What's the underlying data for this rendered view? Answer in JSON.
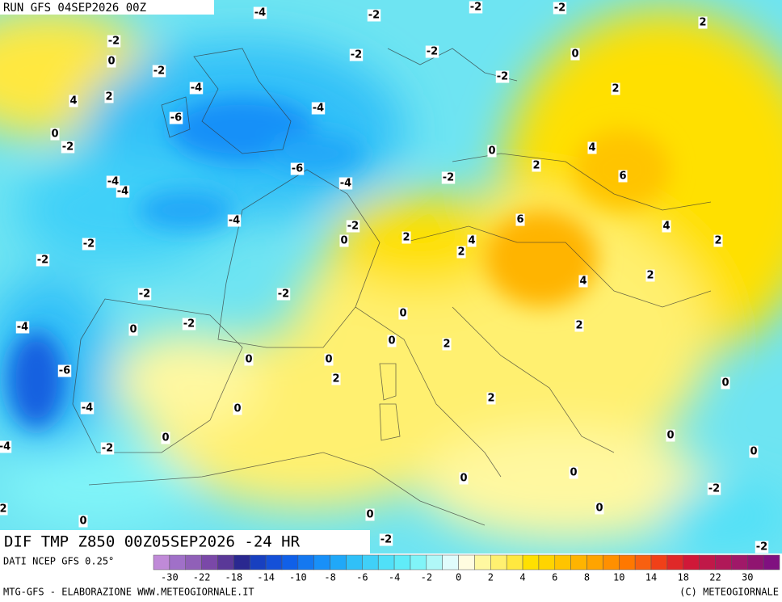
{
  "header": {
    "run": "RUN GFS 04SEP2026 00Z"
  },
  "map": {
    "title": "DIF TMP Z850 00Z05SEP2026 -24 HR",
    "contour_labels": [
      "-4",
      "-2",
      "-2",
      "-2",
      "2",
      "-2",
      "0",
      "-2",
      "-2",
      "0",
      "-2",
      "-2",
      "-4",
      "2",
      "4",
      "2",
      "-4",
      "-6",
      "0",
      "-2",
      "0",
      "4",
      "2",
      "-6",
      "6",
      "-4",
      "-4",
      "-2",
      "-4",
      "-4",
      "6",
      "4",
      "-2",
      "0",
      "2",
      "4",
      "2",
      "-2",
      "2",
      "-2",
      "2",
      "4",
      "-2",
      "-2",
      "0",
      "-4",
      "0",
      "-2",
      "2",
      "0",
      "2",
      "0",
      "0",
      "-6",
      "2",
      "0",
      "2",
      "-4",
      "0",
      "0",
      "0",
      "-2",
      "0",
      "-4",
      "0",
      "0",
      "-2",
      "0",
      "2",
      "0",
      "0",
      "-2",
      "-2"
    ]
  },
  "legend": {
    "source": "DATI NCEP GFS 0.25°",
    "colors": [
      "#c08ad8",
      "#a070c8",
      "#9060b8",
      "#7a48a8",
      "#5a3898",
      "#2a2890",
      "#1840c0",
      "#1450d8",
      "#1060e8",
      "#1478f0",
      "#1890f8",
      "#20a8f8",
      "#30c0f8",
      "#40d0f8",
      "#50e0f8",
      "#60ecf8",
      "#80f4f8",
      "#b0f8f8",
      "#e0fcfc",
      "#fffce0",
      "#fff8a0",
      "#fff070",
      "#ffe840",
      "#ffe000",
      "#ffd400",
      "#ffc400",
      "#ffb400",
      "#ffa400",
      "#ff9000",
      "#ff7800",
      "#f86010",
      "#f04018",
      "#e02828",
      "#d01838",
      "#c01848",
      "#b01858",
      "#a01868",
      "#901470",
      "#801080"
    ],
    "ticks": [
      "-30",
      "-22",
      "-18",
      "-14",
      "-10",
      "-8",
      "-6",
      "-4",
      "-2",
      "0",
      "2",
      "4",
      "6",
      "8",
      "10",
      "14",
      "18",
      "22",
      "30"
    ]
  },
  "footer": {
    "left": "MTG-GFS - ELABORAZIONE WWW.METEOGIORNALE.IT",
    "right": "(C) METEOGIORNALE"
  }
}
